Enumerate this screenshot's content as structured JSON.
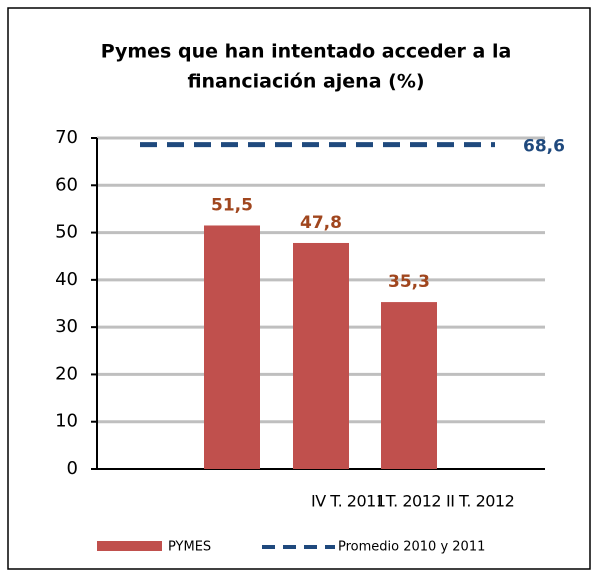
{
  "chart_data": {
    "type": "bar",
    "title": [
      "Pymes que han intentado acceder a la",
      "financiación ajena (%)"
    ],
    "categories": [
      "IV T. 2011",
      "I T. 2012",
      "II T. 2012"
    ],
    "series": [
      {
        "name": "PYMES",
        "color": "#c0504d",
        "values": [
          51.5,
          47.8,
          35.3
        ],
        "value_labels": [
          "51,5",
          "47,8",
          "35,3"
        ]
      }
    ],
    "reference_line": {
      "name": "Promedio 2010 y 2011",
      "color": "#1f497d",
      "value": 68.6,
      "value_label": "68,6"
    },
    "ylim": [
      0,
      70
    ],
    "yticks": [
      0,
      10,
      20,
      30,
      40,
      50,
      60,
      70
    ],
    "grid": true,
    "legend": "bottom"
  }
}
